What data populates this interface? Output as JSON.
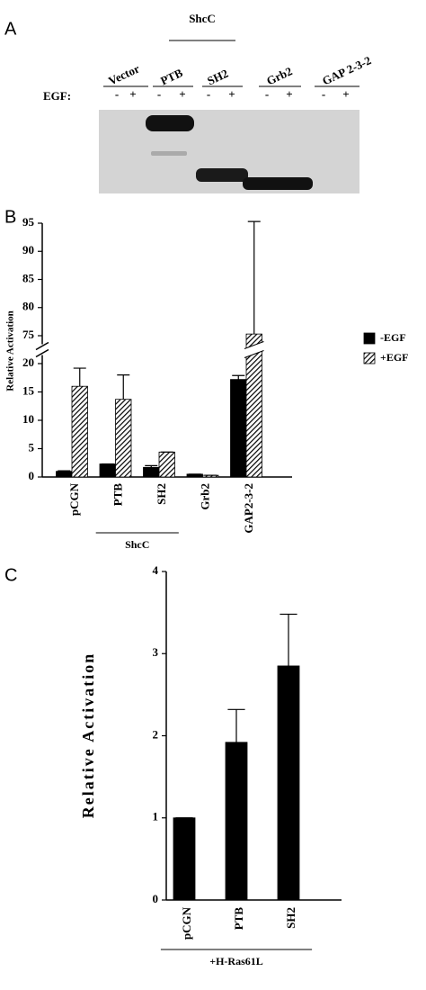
{
  "panel_a": {
    "label": "A",
    "group_label": "ShcC",
    "lanes": [
      "Vector",
      "PTB",
      "SH2",
      "Grb2",
      "GAP 2-3-2"
    ],
    "egf_label": "EGF:",
    "treatments": [
      "-",
      "+"
    ]
  },
  "chart_data": [
    {
      "type": "bar",
      "panel": "B",
      "ylabel": "Relative Activation",
      "categories": [
        "pCGN",
        "PTB",
        "SH2",
        "Grb2",
        "GAP2-3-2"
      ],
      "group_label": "ShcC",
      "series": [
        {
          "name": "-EGF",
          "color": "#000000",
          "pattern": "solid",
          "values": [
            1,
            2.3,
            1.7,
            0.5,
            17.2
          ],
          "errors": [
            0.1,
            0,
            0.3,
            0,
            0.7
          ]
        },
        {
          "name": "+EGF",
          "color": "#000000",
          "pattern": "hatch",
          "values": [
            16,
            13.7,
            4.4,
            0.3,
            75.3
          ],
          "errors": [
            3.2,
            4.3,
            0,
            0,
            20
          ]
        }
      ],
      "ylim": [
        0,
        95
      ],
      "ybreak": [
        20,
        75
      ],
      "yticks": [
        0,
        5,
        10,
        15,
        20,
        75,
        80,
        85,
        90,
        95
      ],
      "legend": "right"
    },
    {
      "type": "bar",
      "panel": "C",
      "ylabel": "Relative Activation",
      "categories": [
        "pCGN",
        "PTB",
        "SH2"
      ],
      "group_label": "+H-Ras61L",
      "series": [
        {
          "name": "H-Ras61L",
          "color": "#000000",
          "pattern": "solid",
          "values": [
            1,
            1.92,
            2.85
          ],
          "errors": [
            0,
            0.4,
            0.63
          ]
        }
      ],
      "ylim": [
        0,
        4
      ],
      "yticks": [
        0,
        1,
        2,
        3,
        4
      ]
    }
  ]
}
